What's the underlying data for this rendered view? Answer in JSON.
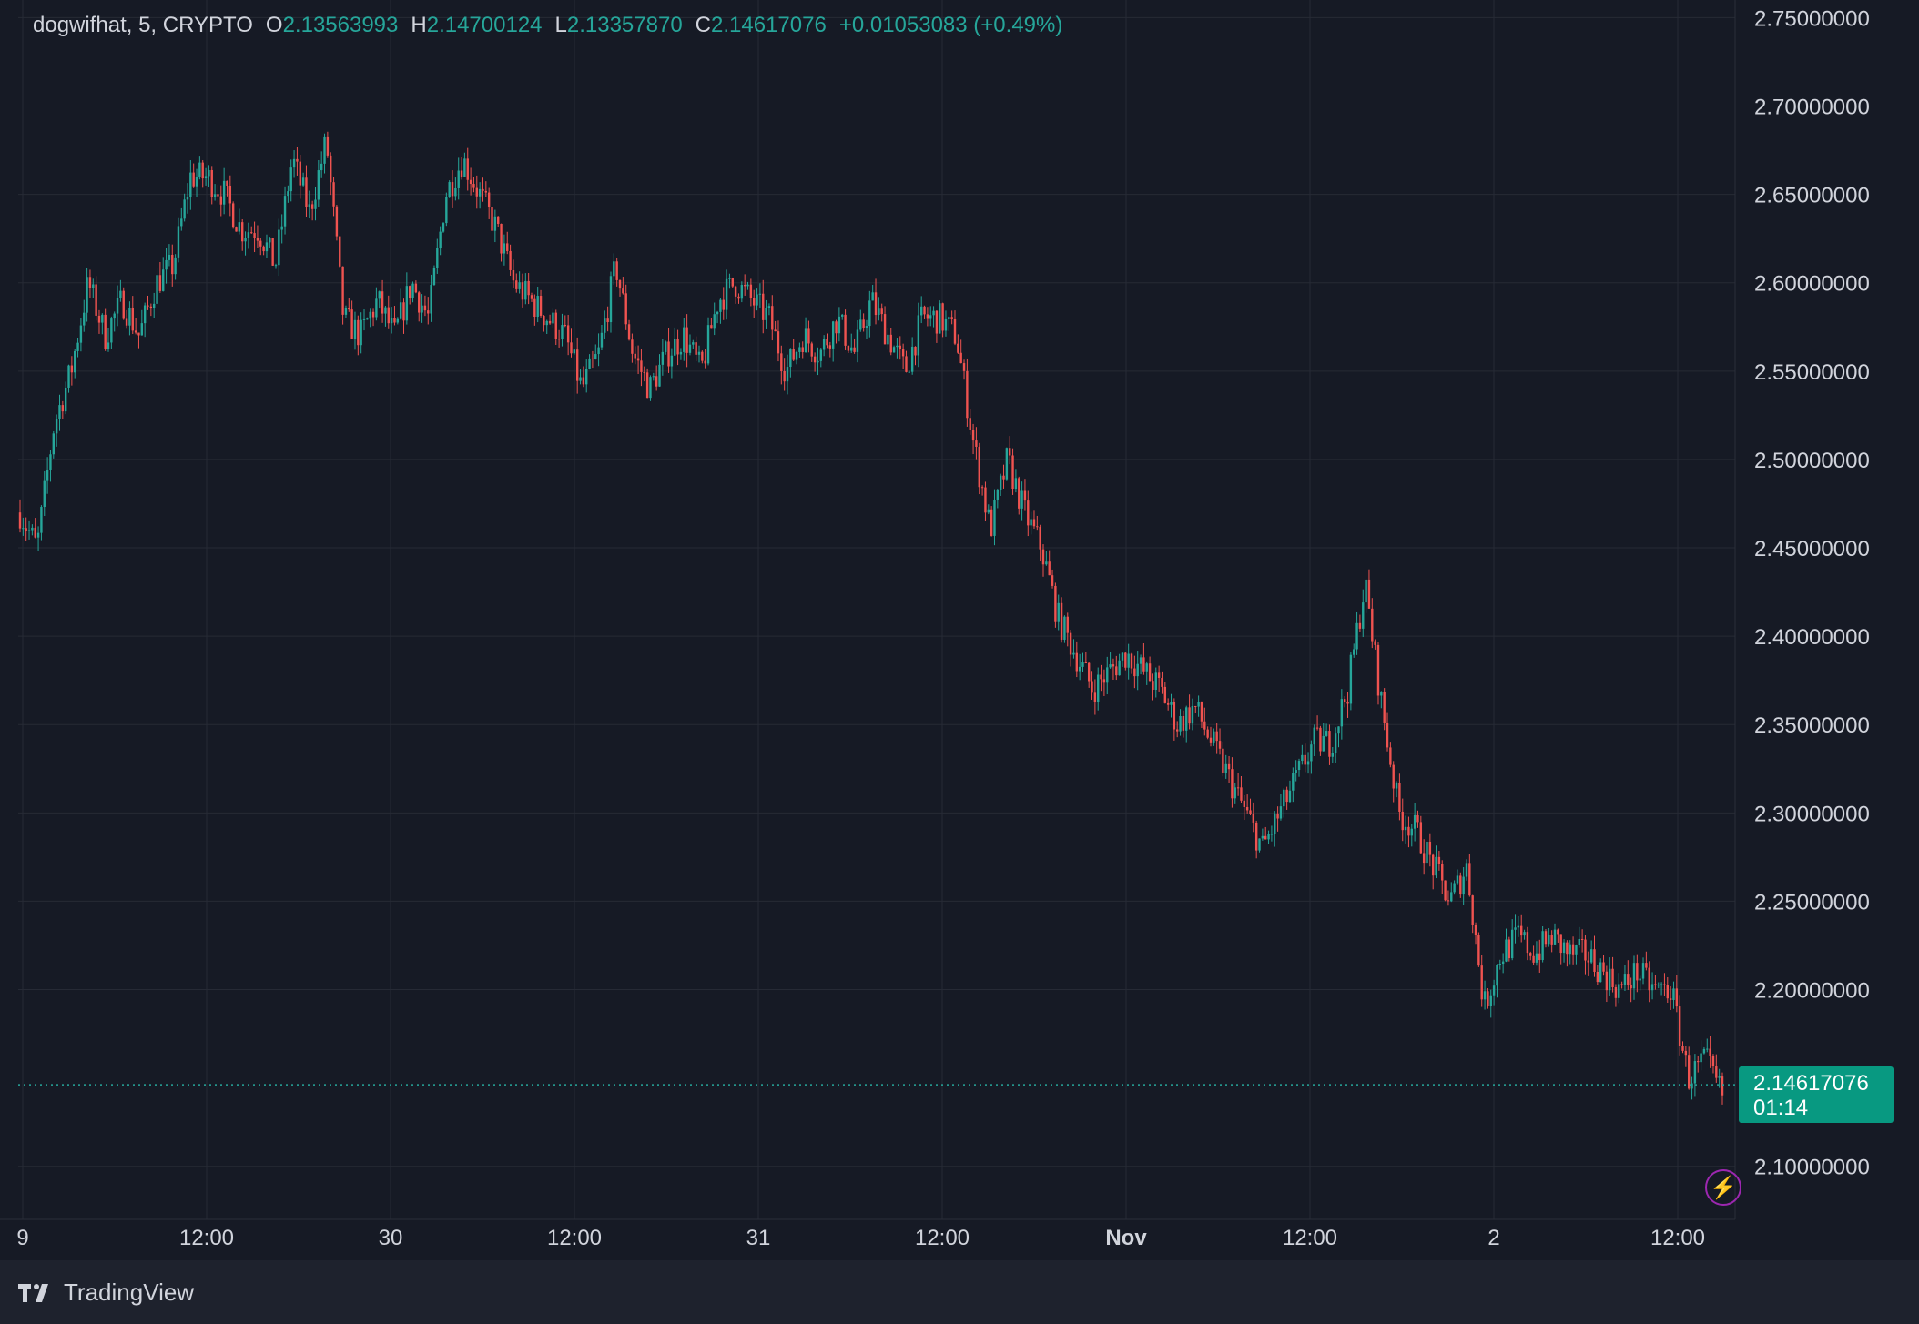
{
  "legend": {
    "symbol": "dogwifhat, 5, CRYPTO",
    "o_label": "O",
    "o_value": "2.13563993",
    "h_label": "H",
    "h_value": "2.14700124",
    "l_label": "L",
    "l_value": "2.13357870",
    "c_label": "C",
    "c_value": "2.14617076",
    "change": "+0.01053083 (+0.49%)"
  },
  "price_tag": {
    "price": "2.14617076",
    "countdown": "01:14"
  },
  "brand": {
    "name": "TradingView"
  },
  "colors": {
    "up": "#26a69a",
    "down": "#ef5350",
    "background": "#161a25",
    "grid": "#262a35",
    "axis_text": "#d1d4dc",
    "tag": "#089981"
  },
  "icons": {
    "brand": "tradingview-logo-icon",
    "bolt": "lightning-bolt-icon"
  },
  "chart_data": {
    "type": "candlestick",
    "interval": "5",
    "ylim": [
      2.07,
      2.76
    ],
    "x_ticks": [
      "9",
      "12:00",
      "30",
      "12:00",
      "31",
      "12:00",
      "Nov",
      "12:00",
      "2",
      "12:00"
    ],
    "y_ticks": [
      "2.75000000",
      "2.70000000",
      "2.65000000",
      "2.60000000",
      "2.55000000",
      "2.50000000",
      "2.45000000",
      "2.40000000",
      "2.35000000",
      "2.30000000",
      "2.25000000",
      "2.20000000",
      "2.10000000"
    ],
    "y_tick_values": [
      2.75,
      2.7,
      2.65,
      2.6,
      2.55,
      2.5,
      2.45,
      2.4,
      2.35,
      2.3,
      2.25,
      2.2,
      2.1
    ],
    "last_price": 2.14617076,
    "close_path": [
      2.47,
      2.45,
      2.52,
      2.55,
      2.6,
      2.57,
      2.59,
      2.57,
      2.6,
      2.61,
      2.66,
      2.66,
      2.65,
      2.63,
      2.63,
      2.61,
      2.67,
      2.64,
      2.68,
      2.58,
      2.57,
      2.59,
      2.57,
      2.6,
      2.58,
      2.65,
      2.67,
      2.65,
      2.63,
      2.6,
      2.59,
      2.58,
      2.57,
      2.54,
      2.56,
      2.61,
      2.56,
      2.54,
      2.56,
      2.57,
      2.55,
      2.59,
      2.6,
      2.59,
      2.58,
      2.55,
      2.57,
      2.56,
      2.58,
      2.56,
      2.59,
      2.57,
      2.55,
      2.58,
      2.58,
      2.57,
      2.51,
      2.46,
      2.5,
      2.47,
      2.45,
      2.41,
      2.39,
      2.37,
      2.38,
      2.39,
      2.38,
      2.37,
      2.35,
      2.36,
      2.34,
      2.32,
      2.3,
      2.28,
      2.3,
      2.32,
      2.34,
      2.34,
      2.37,
      2.43,
      2.36,
      2.3,
      2.29,
      2.27,
      2.25,
      2.27,
      2.19,
      2.22,
      2.23,
      2.22,
      2.23,
      2.22,
      2.22,
      2.21,
      2.2,
      2.21,
      2.2,
      2.2,
      2.15,
      2.16,
      2.14
    ]
  }
}
